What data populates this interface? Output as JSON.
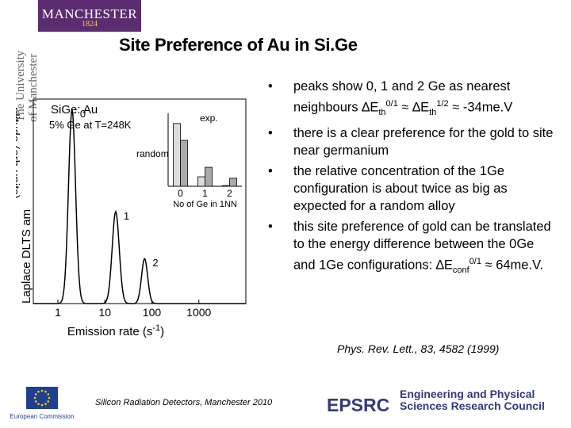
{
  "header": {
    "logo_name": "MANCHESTER",
    "logo_year": "1824",
    "university_lines": [
      "The University",
      "of Manchester"
    ]
  },
  "slide": {
    "title": "Site Preference of Au in Si.Ge",
    "bullets": [
      [
        "peaks show 0, 1 and 2 Ge as nearest neighbours ∆E",
        "th",
        "0/1",
        " ≈ ∆E",
        "th",
        "1/2",
        " ≈ -34me.V"
      ],
      "there is a clear preference for the gold to site near germanium",
      "the relative concentration of the 1Ge configuration is about twice as big as expected for  a random alloy",
      [
        "this site preference of gold can be translated to the energy difference between the 0Ge and 1Ge configurations:  ∆E",
        "conf",
        "0/1",
        " ≈  64me.V."
      ]
    ],
    "citation": "Phys. Rev. Lett., 83, 4582 (1999)",
    "footer": "Silicon Radiation Detectors, Manchester  2010",
    "funder_name": "EPSRC",
    "funder_text": "Engineering and Physical Sciences Research Council",
    "eu_text": "European Commission"
  },
  "colors": {
    "logo_purple": "#5b2c6f",
    "logo_gold": "#f2c94c",
    "epsrc_blue": "#333a7a",
    "epsrc_red": "#c8242b",
    "eu_blue": "#1f3f8f",
    "eu_star": "#ffcc00",
    "bar_random": "#dcdcdc",
    "bar_exp": "#aaaaaa"
  },
  "chart_data": [
    {
      "type": "line",
      "title": "SiGe: Au",
      "subtitle": "5% Ge at T=248K",
      "xlabel": "Emission rate (s",
      "xlabel_sup": "-1",
      "xlabel_suffix": ")",
      "ylabel": "Laplace DLTS am",
      "ylabel2": "plitude (arb.units)",
      "xscale": "log",
      "xlim": [
        0.3,
        10000
      ],
      "ylim": [
        0,
        1.0
      ],
      "xticks": [
        1,
        10,
        100,
        1000
      ],
      "xtick_labels": [
        "1",
        "10",
        "100",
        "1000"
      ],
      "peaks": [
        {
          "label": "0",
          "x": 2.0,
          "height": 0.95,
          "width": 0.075
        },
        {
          "label": "1",
          "x": 17,
          "height": 0.45,
          "width": 0.075
        },
        {
          "label": "2",
          "x": 70,
          "height": 0.22,
          "width": 0.065
        }
      ]
    },
    {
      "type": "bar",
      "categories": [
        "0",
        "1",
        "2"
      ],
      "xlabel": "No of Ge in 1NN",
      "series": [
        {
          "name": "random",
          "values": [
            0.86,
            0.13,
            0.01
          ]
        },
        {
          "name": "exp.",
          "values": [
            0.63,
            0.26,
            0.11
          ]
        }
      ],
      "ylim": [
        0,
        1.0
      ]
    }
  ]
}
